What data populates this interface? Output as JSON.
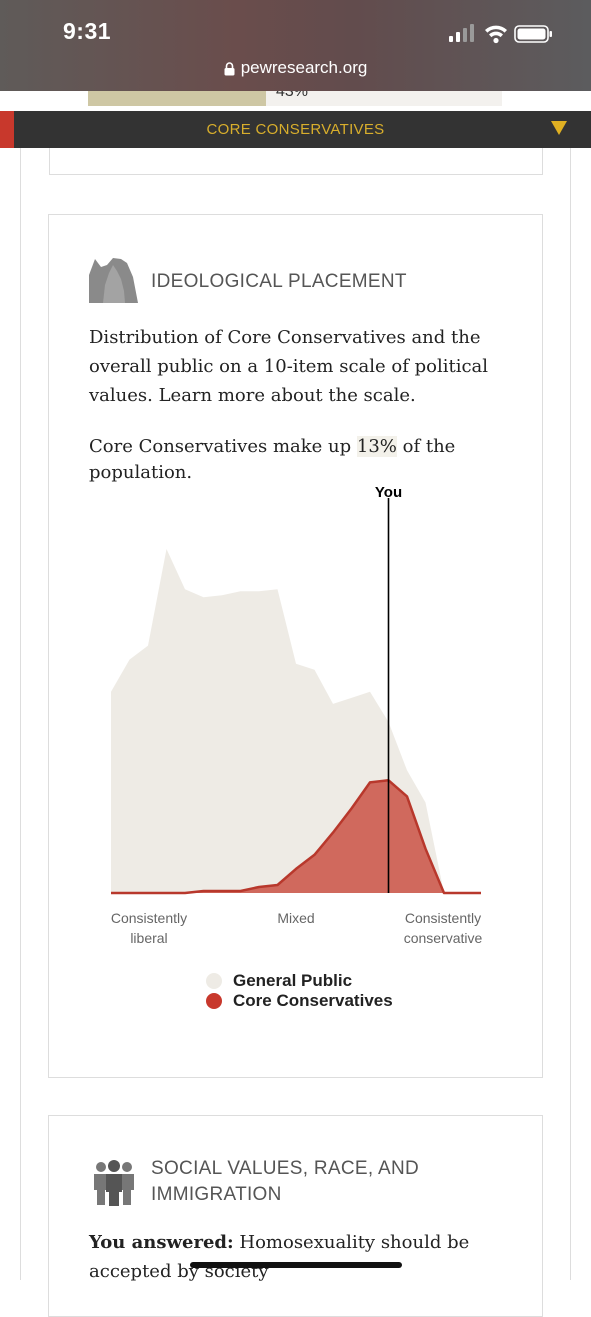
{
  "status_bar": {
    "time": "9:31",
    "url": "pewresearch.org"
  },
  "previous_section": {
    "percent_label": "43%"
  },
  "sticky_nav": {
    "label": "CORE CONSERVATIVES"
  },
  "ideological_placement": {
    "title": "IDEOLOGICAL PLACEMENT",
    "description": "Distribution of Core Conservatives and the overall public on a 10-item scale of political values. Learn more about the scale.",
    "share_prefix": "Core Conservatives make up ",
    "share_value": "13%",
    "share_suffix": " of the population.",
    "legend": [
      {
        "label": "General Public",
        "color": "#eeebe5"
      },
      {
        "label": "Core Conservatives",
        "color": "#c8382c"
      }
    ]
  },
  "chart_data": {
    "type": "area",
    "x": [
      -10,
      -9,
      -8,
      -7,
      -6,
      -5,
      -4,
      -3,
      -2,
      -1,
      0,
      1,
      2,
      3,
      4,
      5,
      6,
      7,
      8,
      9,
      10
    ],
    "series": [
      {
        "name": "General Public",
        "color": "#eeebe5",
        "values": [
          100,
          116,
          123,
          171,
          151,
          147,
          148,
          150,
          150,
          151,
          114,
          111,
          94,
          97,
          100,
          85,
          61,
          45,
          0,
          0,
          0
        ]
      },
      {
        "name": "Core Conservatives",
        "color": "#c8382c",
        "values": [
          0,
          0,
          0,
          0,
          0,
          1,
          1,
          1,
          3,
          4,
          12,
          19,
          30,
          42,
          55,
          56,
          48,
          22,
          0,
          0,
          0
        ]
      }
    ],
    "xtick_labels": [
      {
        "value": -10,
        "line1": "Consistently",
        "line2": "liberal"
      },
      {
        "value": 0,
        "line1": "Mixed",
        "line2": ""
      },
      {
        "value": 10,
        "line1": "Consistently",
        "line2": "conservative"
      }
    ],
    "marker": {
      "label": "You",
      "x": 5
    },
    "xlim": [
      -10,
      10
    ],
    "ylim": [
      0,
      171
    ]
  },
  "social_values": {
    "title": "SOCIAL VALUES, RACE, AND IMMIGRATION",
    "answer_label": "You answered:",
    "answer_text": " Homosexuality should be accepted by society"
  }
}
